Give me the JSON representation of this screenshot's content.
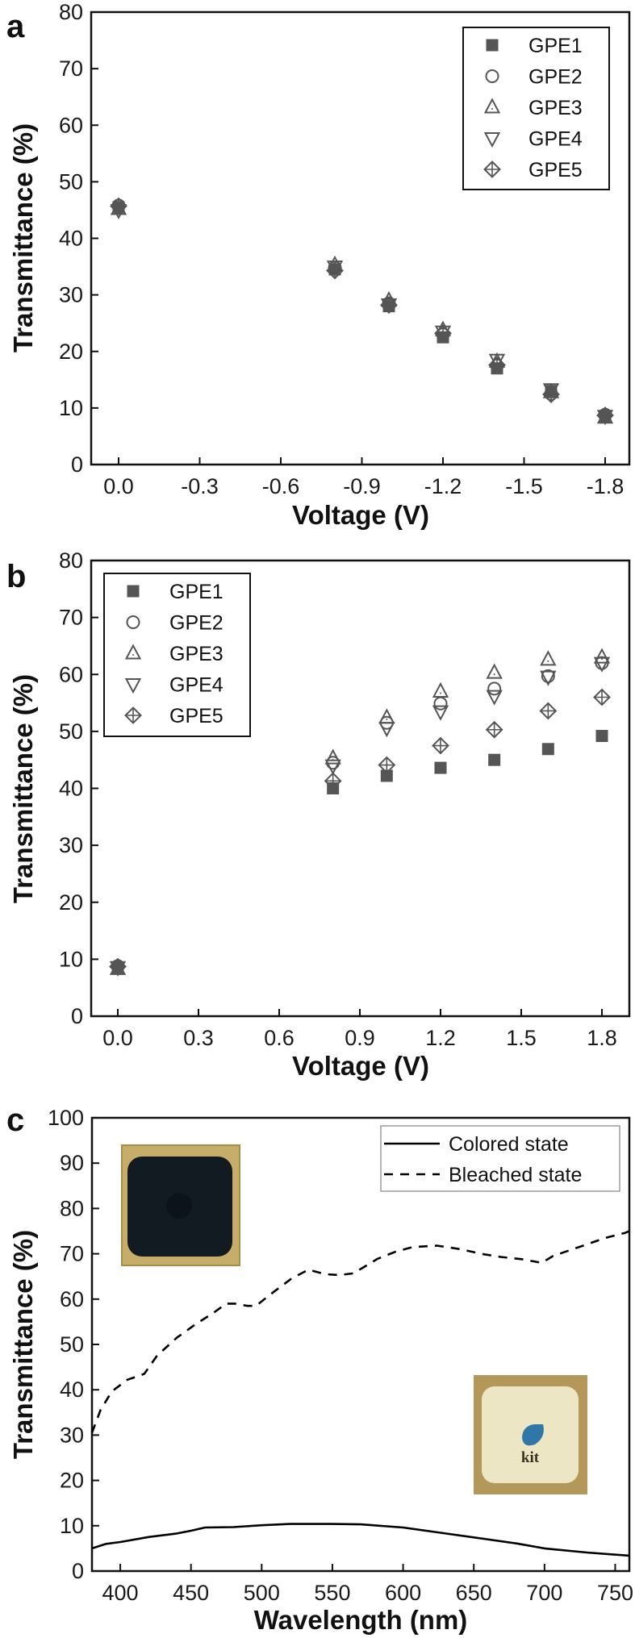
{
  "chart_data": [
    {
      "panel": "a",
      "type": "scatter",
      "title": "",
      "xlabel": "Voltage (V)",
      "ylabel": "Transmittance (%)",
      "xlim": [
        0.1,
        -1.95
      ],
      "ylim": [
        0,
        80
      ],
      "xticks": [
        "0.0",
        "-0.3",
        "-0.6",
        "-0.9",
        "-1.2",
        "-1.5",
        "-1.8"
      ],
      "xtick_values": [
        0.0,
        -0.3,
        -0.6,
        -0.9,
        -1.2,
        -1.5,
        -1.8
      ],
      "yticks": [
        "0",
        "10",
        "20",
        "30",
        "40",
        "50",
        "60",
        "70",
        "80"
      ],
      "ytick_values": [
        0,
        10,
        20,
        30,
        40,
        50,
        60,
        70,
        80
      ],
      "legend_position": "top-right",
      "x": [
        0.0,
        -0.8,
        -1.0,
        -1.2,
        -1.4,
        -1.6,
        -1.8
      ],
      "series": [
        {
          "name": "GPE1",
          "marker": "filled-square",
          "values": [
            45.5,
            34.5,
            28.0,
            22.5,
            17.0,
            13.0,
            8.5
          ]
        },
        {
          "name": "GPE2",
          "marker": "open-circle",
          "values": [
            45.8,
            34.8,
            28.5,
            23.0,
            17.5,
            12.5,
            8.8
          ]
        },
        {
          "name": "GPE3",
          "marker": "open-triangle-up",
          "values": [
            45.2,
            35.3,
            29.0,
            23.8,
            18.2,
            12.8,
            8.3
          ]
        },
        {
          "name": "GPE4",
          "marker": "open-triangle-down",
          "values": [
            45.0,
            35.0,
            28.3,
            23.5,
            18.5,
            13.3,
            8.6
          ]
        },
        {
          "name": "GPE5",
          "marker": "crossed-diamond",
          "values": [
            45.7,
            34.3,
            28.2,
            23.2,
            17.6,
            12.4,
            8.7
          ]
        }
      ]
    },
    {
      "panel": "b",
      "type": "scatter",
      "title": "",
      "xlabel": "Voltage (V)",
      "ylabel": "Transmittance (%)",
      "xlim": [
        -0.1,
        1.95
      ],
      "ylim": [
        0,
        80
      ],
      "xticks": [
        "0.0",
        "0.3",
        "0.6",
        "0.9",
        "1.2",
        "1.5",
        "1.8"
      ],
      "xtick_values": [
        0.0,
        0.3,
        0.6,
        0.9,
        1.2,
        1.5,
        1.8
      ],
      "yticks": [
        "0",
        "10",
        "20",
        "30",
        "40",
        "50",
        "60",
        "70",
        "80"
      ],
      "ytick_values": [
        0,
        10,
        20,
        30,
        40,
        50,
        60,
        70,
        80
      ],
      "legend_position": "top-left",
      "x": [
        0.0,
        0.8,
        1.0,
        1.2,
        1.4,
        1.6,
        1.8
      ],
      "series": [
        {
          "name": "GPE1",
          "marker": "filled-square",
          "values": [
            8.5,
            40.0,
            42.2,
            43.6,
            45.0,
            46.9,
            49.2
          ]
        },
        {
          "name": "GPE2",
          "marker": "open-circle",
          "values": [
            8.8,
            44.5,
            51.5,
            54.9,
            57.5,
            59.7,
            62.0
          ]
        },
        {
          "name": "GPE3",
          "marker": "open-triangle-up",
          "values": [
            8.3,
            45.3,
            52.4,
            57.0,
            60.3,
            62.6,
            63.0
          ]
        },
        {
          "name": "GPE4",
          "marker": "open-triangle-down",
          "values": [
            8.6,
            44.0,
            50.6,
            53.5,
            56.2,
            59.6,
            62.0
          ]
        },
        {
          "name": "GPE5",
          "marker": "crossed-diamond",
          "values": [
            8.7,
            41.3,
            44.1,
            47.5,
            50.3,
            53.6,
            56.0
          ]
        }
      ]
    },
    {
      "panel": "c",
      "type": "line",
      "title": "",
      "xlabel": "Wavelength (nm)",
      "ylabel": "Transmittance (%)",
      "xlim": [
        380,
        760
      ],
      "ylim": [
        0,
        100
      ],
      "xticks": [
        "400",
        "450",
        "500",
        "550",
        "600",
        "650",
        "700",
        "750"
      ],
      "xtick_values": [
        400,
        450,
        500,
        550,
        600,
        650,
        700,
        750
      ],
      "yticks": [
        "0",
        "10",
        "20",
        "30",
        "40",
        "50",
        "60",
        "70",
        "80",
        "90",
        "100"
      ],
      "ytick_values": [
        0,
        10,
        20,
        30,
        40,
        50,
        60,
        70,
        80,
        90,
        100
      ],
      "legend_position": "top-right",
      "series": [
        {
          "name": "Colored state",
          "style": "solid",
          "x": [
            380,
            390,
            400,
            420,
            440,
            450,
            460,
            480,
            500,
            520,
            550,
            570,
            600,
            630,
            655,
            680,
            700,
            730,
            760
          ],
          "values": [
            5.0,
            6.0,
            6.4,
            7.5,
            8.3,
            8.9,
            9.6,
            9.7,
            10.1,
            10.4,
            10.4,
            10.3,
            9.6,
            8.3,
            7.2,
            6.1,
            5.0,
            4.1,
            3.4
          ]
        },
        {
          "name": "Bleached state",
          "style": "dashed",
          "x": [
            380,
            386,
            394,
            405,
            417,
            426,
            440,
            453,
            466,
            475,
            481,
            490,
            496,
            506,
            521,
            533,
            545,
            555,
            565,
            582,
            595,
            607,
            624,
            641,
            655,
            669,
            684,
            698,
            706,
            719,
            732,
            743,
            757,
            760
          ],
          "values": [
            30.5,
            35.5,
            39.6,
            42.2,
            43.5,
            47.5,
            51.5,
            54.4,
            57.0,
            59.0,
            59.0,
            58.5,
            58.5,
            61.0,
            64.5,
            66.5,
            65.5,
            65.3,
            65.7,
            68.9,
            70.5,
            71.5,
            71.8,
            71.0,
            70.0,
            69.3,
            68.8,
            68.0,
            69.5,
            70.9,
            72.3,
            73.5,
            74.6,
            75.0
          ]
        }
      ],
      "insets": [
        {
          "name": "colored-device-photo",
          "description": "dark blue device on gold substrate"
        },
        {
          "name": "bleached-device-photo",
          "description": "transparent device with logo",
          "logo_text": "kit"
        }
      ]
    }
  ],
  "panel_labels": [
    "a",
    "b",
    "c"
  ],
  "colors": {
    "marker": "#555555",
    "axis": "#111111",
    "legend_border_c": "#9a9a9a",
    "photo_gold": "#b79c58",
    "photo_dark": "#121a22",
    "photo_light": "#efe9c6",
    "logo_blue": "#2f77a8"
  }
}
